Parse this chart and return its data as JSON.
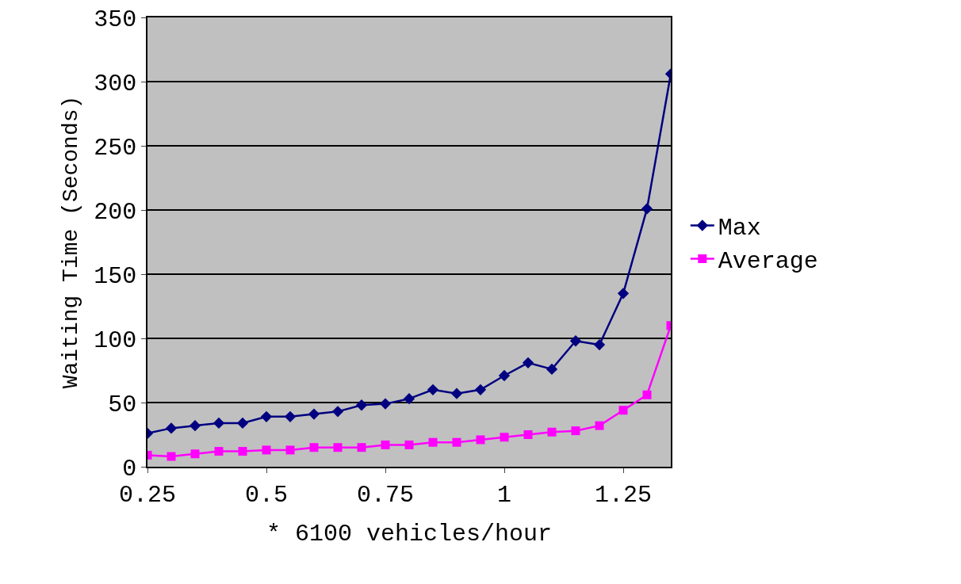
{
  "chart_data": {
    "type": "line",
    "xlabel": "* 6100 vehicles/hour",
    "ylabel": "Waiting Time (Seconds)",
    "x": [
      0.25,
      0.3,
      0.35,
      0.4,
      0.45,
      0.5,
      0.55,
      0.6,
      0.65,
      0.7,
      0.75,
      0.8,
      0.85,
      0.9,
      0.95,
      1,
      1.05,
      1.1,
      1.15,
      1.2,
      1.25,
      1.3,
      1.35
    ],
    "series": [
      {
        "name": "Max",
        "color": "#000080",
        "marker": "diamond",
        "values": [
          26,
          30,
          32,
          34,
          34,
          39,
          39,
          41,
          43,
          48,
          49,
          53,
          60,
          57,
          60,
          71,
          81,
          76,
          98,
          95,
          135,
          201,
          306
        ]
      },
      {
        "name": "Average",
        "color": "#ff00ff",
        "marker": "square",
        "values": [
          9,
          8,
          10,
          12,
          12,
          13,
          13,
          15,
          15,
          15,
          17,
          17,
          19,
          19,
          21,
          23,
          25,
          27,
          28,
          32,
          44,
          56,
          110
        ]
      }
    ],
    "xlim": [
      0.25,
      1.35
    ],
    "xticks": [
      0.25,
      0.5,
      0.75,
      1,
      1.25
    ],
    "ylim": [
      0,
      350
    ],
    "yticks": [
      0,
      50,
      100,
      150,
      200,
      250,
      300,
      350
    ],
    "grid": "y",
    "legend": "right",
    "line_style": "solid"
  }
}
